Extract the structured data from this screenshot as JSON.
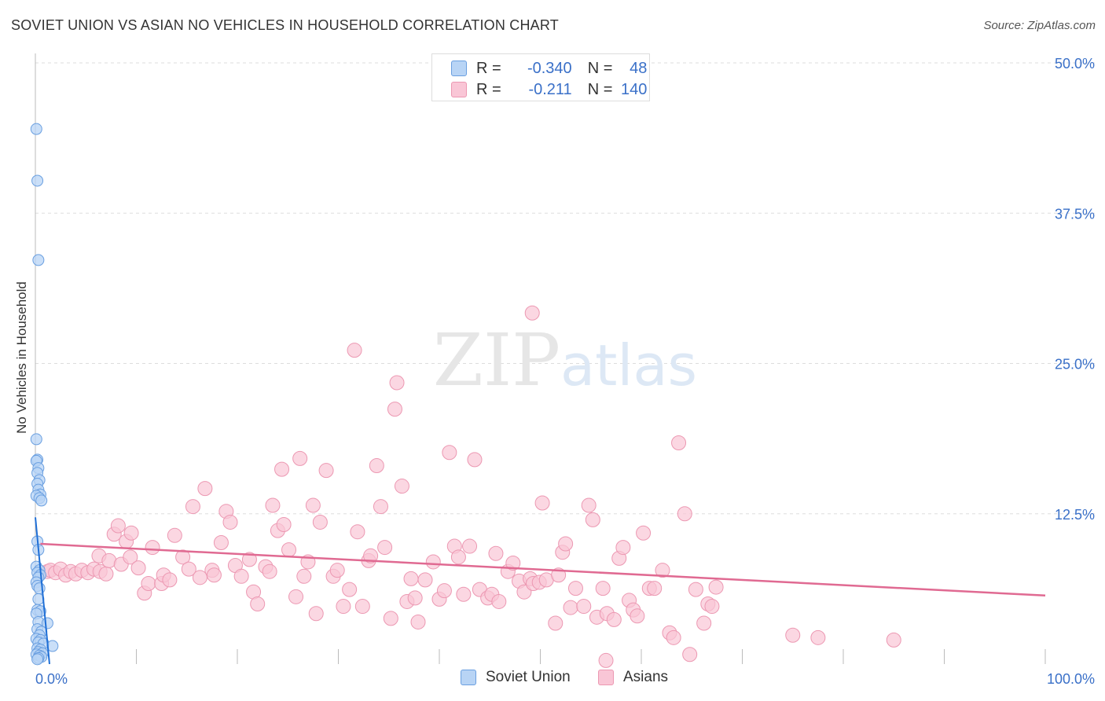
{
  "header": {
    "title": "SOVIET UNION VS ASIAN NO VEHICLES IN HOUSEHOLD CORRELATION CHART",
    "source": "Source: ZipAtlas.com"
  },
  "watermark": {
    "part1": "ZIP",
    "part2": "atlas"
  },
  "legend": {
    "rows": [
      {
        "r_label": "R =",
        "r_value": "-0.340",
        "n_label": "N =",
        "n_value": "48"
      },
      {
        "r_label": "R =",
        "r_value": "-0.211",
        "n_label": "N =",
        "n_value": "140"
      }
    ]
  },
  "bottom_legend": {
    "items": [
      "Soviet Union",
      "Asians"
    ]
  },
  "colors": {
    "soviet_fill": "#b8d4f5",
    "soviet_stroke": "#6a9fe0",
    "soviet_line": "#1f6fd6",
    "asian_fill": "#f9c6d6",
    "asian_stroke": "#ec98b2",
    "asian_line": "#e06a92",
    "tick_label": "#3a70c8"
  },
  "chart_data": {
    "type": "scatter",
    "title": "SOVIET UNION VS ASIAN NO VEHICLES IN HOUSEHOLD CORRELATION CHART",
    "xlabel": "",
    "ylabel": "No Vehicles in Household",
    "xlim": [
      0,
      100
    ],
    "ylim": [
      0,
      50
    ],
    "x_tick_labels": [
      {
        "value": 0,
        "label": "0.0%"
      },
      {
        "value": 100,
        "label": "100.0%"
      }
    ],
    "y_tick_labels": [
      {
        "value": 12.5,
        "label": "12.5%"
      },
      {
        "value": 25,
        "label": "25.0%"
      },
      {
        "value": 37.5,
        "label": "37.5%"
      },
      {
        "value": 50,
        "label": "50.0%"
      }
    ],
    "series": [
      {
        "name": "Soviet Union",
        "R": -0.34,
        "N": 48,
        "trend": {
          "x": [
            0.0,
            1.4
          ],
          "y": [
            12.2,
            0.0
          ]
        },
        "points": [
          [
            0.1,
            44.5
          ],
          [
            0.2,
            40.2
          ],
          [
            0.3,
            33.6
          ],
          [
            0.1,
            18.7
          ],
          [
            0.2,
            17.0
          ],
          [
            0.1,
            16.9
          ],
          [
            0.3,
            16.3
          ],
          [
            0.2,
            15.9
          ],
          [
            0.4,
            15.3
          ],
          [
            0.2,
            15.0
          ],
          [
            0.3,
            14.5
          ],
          [
            0.5,
            14.1
          ],
          [
            0.1,
            14.0
          ],
          [
            0.4,
            13.8
          ],
          [
            0.6,
            13.6
          ],
          [
            0.2,
            10.2
          ],
          [
            0.3,
            9.5
          ],
          [
            0.1,
            8.1
          ],
          [
            0.4,
            7.8
          ],
          [
            0.2,
            7.6
          ],
          [
            0.5,
            7.4
          ],
          [
            0.3,
            7.2
          ],
          [
            0.1,
            6.8
          ],
          [
            0.2,
            6.5
          ],
          [
            0.4,
            6.3
          ],
          [
            0.3,
            5.4
          ],
          [
            0.2,
            4.5
          ],
          [
            0.5,
            4.4
          ],
          [
            0.1,
            4.2
          ],
          [
            0.3,
            3.5
          ],
          [
            1.2,
            3.4
          ],
          [
            0.2,
            2.9
          ],
          [
            0.6,
            2.7
          ],
          [
            0.4,
            2.4
          ],
          [
            0.1,
            2.1
          ],
          [
            0.5,
            2.0
          ],
          [
            0.3,
            1.8
          ],
          [
            0.8,
            1.7
          ],
          [
            1.7,
            1.5
          ],
          [
            0.2,
            1.3
          ],
          [
            0.5,
            1.2
          ],
          [
            0.3,
            1.0
          ],
          [
            0.7,
            0.9
          ],
          [
            0.1,
            0.8
          ],
          [
            0.4,
            0.7
          ],
          [
            0.6,
            0.6
          ],
          [
            0.3,
            0.5
          ],
          [
            0.2,
            0.4
          ]
        ]
      },
      {
        "name": "Asians",
        "R": -0.211,
        "N": 140,
        "trend": {
          "x": [
            0.5,
            100.0
          ],
          "y": [
            10.0,
            5.7
          ]
        },
        "points": [
          [
            1.2,
            7.7
          ],
          [
            1.5,
            7.8
          ],
          [
            2.0,
            7.6
          ],
          [
            2.5,
            7.9
          ],
          [
            3.0,
            7.4
          ],
          [
            3.5,
            7.7
          ],
          [
            4.0,
            7.5
          ],
          [
            4.6,
            7.8
          ],
          [
            5.2,
            7.6
          ],
          [
            5.8,
            7.9
          ],
          [
            6.4,
            7.7
          ],
          [
            7.0,
            7.5
          ],
          [
            6.3,
            9.0
          ],
          [
            7.3,
            8.6
          ],
          [
            7.8,
            10.8
          ],
          [
            8.2,
            11.5
          ],
          [
            8.5,
            8.3
          ],
          [
            9.0,
            10.2
          ],
          [
            9.5,
            10.9
          ],
          [
            9.4,
            8.9
          ],
          [
            10.2,
            8.0
          ],
          [
            10.8,
            5.9
          ],
          [
            11.2,
            6.7
          ],
          [
            11.6,
            9.7
          ],
          [
            12.5,
            6.7
          ],
          [
            12.7,
            7.4
          ],
          [
            13.3,
            7.0
          ],
          [
            13.8,
            10.7
          ],
          [
            14.6,
            8.9
          ],
          [
            15.2,
            7.9
          ],
          [
            15.6,
            13.1
          ],
          [
            16.3,
            7.2
          ],
          [
            16.8,
            14.6
          ],
          [
            17.5,
            7.8
          ],
          [
            17.7,
            7.4
          ],
          [
            18.4,
            10.1
          ],
          [
            18.9,
            12.7
          ],
          [
            19.3,
            11.8
          ],
          [
            19.8,
            8.2
          ],
          [
            20.4,
            7.3
          ],
          [
            21.2,
            8.7
          ],
          [
            21.6,
            6.0
          ],
          [
            22.0,
            5.0
          ],
          [
            22.8,
            8.1
          ],
          [
            23.2,
            7.7
          ],
          [
            23.5,
            13.2
          ],
          [
            24.0,
            11.1
          ],
          [
            24.4,
            16.2
          ],
          [
            24.6,
            11.6
          ],
          [
            25.1,
            9.5
          ],
          [
            25.8,
            5.6
          ],
          [
            26.2,
            17.1
          ],
          [
            26.6,
            7.3
          ],
          [
            27.0,
            8.5
          ],
          [
            27.5,
            13.2
          ],
          [
            27.8,
            4.2
          ],
          [
            28.2,
            11.8
          ],
          [
            28.8,
            16.1
          ],
          [
            29.5,
            7.3
          ],
          [
            29.9,
            7.8
          ],
          [
            30.5,
            4.8
          ],
          [
            31.1,
            6.2
          ],
          [
            31.6,
            26.1
          ],
          [
            31.9,
            11.0
          ],
          [
            32.4,
            4.8
          ],
          [
            33.0,
            8.6
          ],
          [
            33.2,
            9.0
          ],
          [
            33.8,
            16.5
          ],
          [
            34.2,
            13.1
          ],
          [
            34.6,
            9.7
          ],
          [
            35.2,
            3.8
          ],
          [
            35.6,
            21.2
          ],
          [
            35.8,
            23.4
          ],
          [
            36.3,
            14.8
          ],
          [
            36.8,
            5.2
          ],
          [
            37.2,
            7.1
          ],
          [
            37.6,
            5.5
          ],
          [
            37.9,
            3.5
          ],
          [
            38.6,
            7.0
          ],
          [
            39.4,
            8.5
          ],
          [
            40.0,
            5.4
          ],
          [
            40.5,
            6.1
          ],
          [
            41.0,
            17.6
          ],
          [
            41.5,
            9.8
          ],
          [
            41.9,
            8.9
          ],
          [
            42.4,
            5.8
          ],
          [
            43.0,
            9.8
          ],
          [
            43.5,
            17.0
          ],
          [
            44.0,
            6.2
          ],
          [
            44.8,
            5.5
          ],
          [
            45.2,
            5.8
          ],
          [
            45.6,
            9.2
          ],
          [
            45.9,
            5.2
          ],
          [
            46.8,
            7.7
          ],
          [
            47.3,
            8.4
          ],
          [
            47.9,
            6.9
          ],
          [
            48.4,
            6.0
          ],
          [
            49.0,
            7.1
          ],
          [
            49.3,
            6.7
          ],
          [
            49.9,
            6.8
          ],
          [
            50.2,
            13.4
          ],
          [
            50.6,
            7.0
          ],
          [
            51.5,
            3.4
          ],
          [
            51.8,
            7.4
          ],
          [
            52.2,
            9.3
          ],
          [
            52.5,
            10.0
          ],
          [
            53.0,
            4.7
          ],
          [
            53.5,
            6.3
          ],
          [
            54.3,
            4.8
          ],
          [
            54.8,
            13.2
          ],
          [
            55.2,
            12.0
          ],
          [
            55.6,
            3.9
          ],
          [
            56.2,
            6.3
          ],
          [
            56.6,
            4.2
          ],
          [
            57.3,
            3.7
          ],
          [
            57.8,
            8.8
          ],
          [
            58.2,
            9.7
          ],
          [
            58.8,
            5.3
          ],
          [
            59.2,
            4.5
          ],
          [
            59.6,
            4.0
          ],
          [
            60.2,
            10.9
          ],
          [
            60.8,
            6.3
          ],
          [
            61.3,
            6.3
          ],
          [
            62.1,
            7.8
          ],
          [
            62.8,
            2.6
          ],
          [
            63.2,
            2.2
          ],
          [
            63.7,
            18.4
          ],
          [
            64.3,
            12.5
          ],
          [
            64.8,
            0.8
          ],
          [
            65.4,
            6.2
          ],
          [
            66.2,
            3.4
          ],
          [
            66.6,
            5.0
          ],
          [
            67.0,
            4.8
          ],
          [
            67.4,
            6.4
          ],
          [
            75.0,
            2.4
          ],
          [
            77.5,
            2.2
          ],
          [
            85.0,
            2.0
          ],
          [
            56.5,
            0.3
          ],
          [
            49.2,
            29.2
          ]
        ]
      }
    ]
  }
}
